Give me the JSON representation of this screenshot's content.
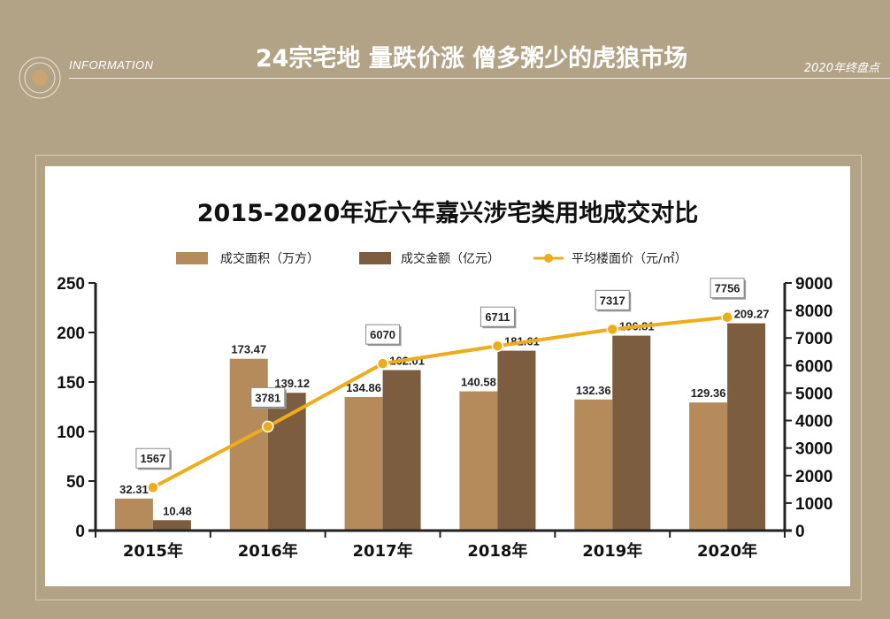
{
  "header": {
    "info_label": "INFORMATION",
    "title": "24宗宅地 量跌价涨 僧多粥少的虎狼市场",
    "year_tag": "2020年终盘点"
  },
  "colors": {
    "background": "#b2a386",
    "area_bar": "#b68b5c",
    "amount_bar": "#7d5d3f",
    "price_line": "#eeac1b"
  },
  "chart_data": {
    "type": "bar",
    "title": "2015-2020年近六年嘉兴涉宅类用地成交对比",
    "categories": [
      "2015年",
      "2016年",
      "2017年",
      "2018年",
      "2019年",
      "2020年"
    ],
    "series": [
      {
        "name": "成交面积（万方）",
        "type": "bar",
        "axis": "left",
        "values": [
          32.31,
          173.47,
          134.86,
          140.58,
          132.36,
          129.36
        ]
      },
      {
        "name": "成交金额（亿元）",
        "type": "bar",
        "axis": "left",
        "values": [
          10.48,
          139.12,
          162.01,
          181.61,
          196.81,
          209.27
        ]
      },
      {
        "name": "平均楼面价（元/㎡）",
        "type": "line",
        "axis": "right",
        "values": [
          1567,
          3781,
          6070,
          6711,
          7317,
          7756
        ]
      }
    ],
    "y_left": {
      "min": 0,
      "max": 250,
      "ticks": [
        "0",
        "50",
        "100",
        "150",
        "200",
        "250"
      ]
    },
    "y_right": {
      "min": 0,
      "max": 9000,
      "ticks": [
        "0",
        "1000",
        "2000",
        "3000",
        "4000",
        "5000",
        "6000",
        "7000",
        "8000",
        "9000"
      ]
    },
    "grid": false,
    "legend_position": "top"
  }
}
